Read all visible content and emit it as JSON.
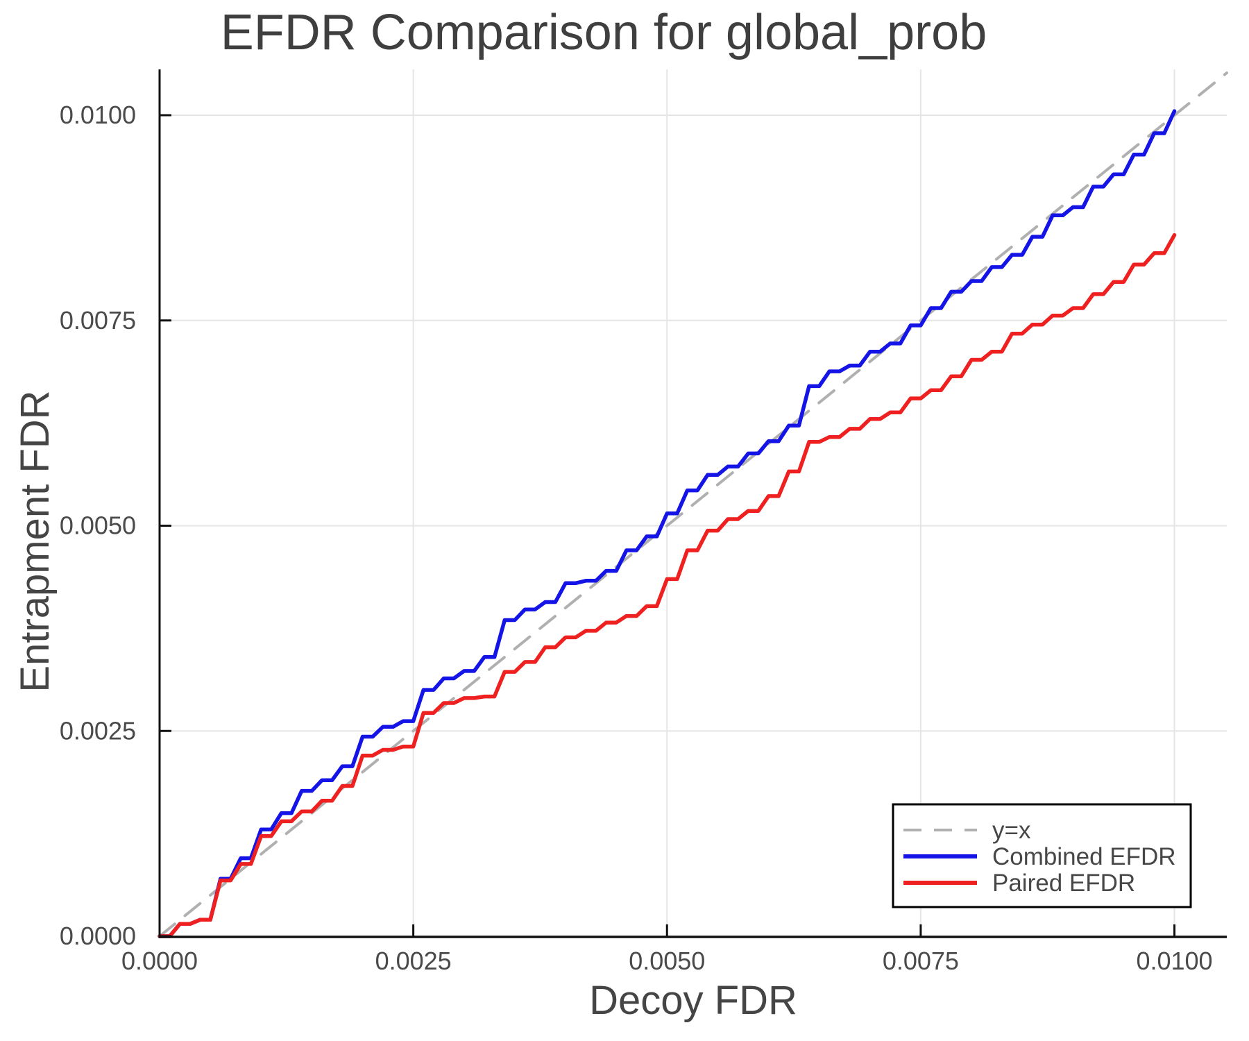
{
  "chart": {
    "title": "EFDR Comparison for global_prob",
    "xlabel": "Decoy FDR",
    "ylabel": "Entrapment FDR"
  },
  "style": {
    "background": "#ffffff",
    "axis_color": "#111111",
    "grid_color": "#e5e5e5",
    "tick_label_color": "#4a4a4a",
    "title_color": "#3f3f3f",
    "legend_border_color": "#000000",
    "legend_text_color": "#474747",
    "reference_color": "#b0b0b0",
    "combined_color": "#1414e6",
    "paired_color": "#ee2020"
  },
  "chart_data": {
    "type": "line",
    "title": "EFDR Comparison for global_prob",
    "xlabel": "Decoy FDR",
    "ylabel": "Entrapment FDR",
    "xlim": [
      0,
      0.010516
    ],
    "ylim": [
      0,
      0.010558
    ],
    "grid": true,
    "legend_position": "bottom-right",
    "x_ticks": {
      "values": [
        0.0,
        0.0025,
        0.005,
        0.0075,
        0.01
      ],
      "labels": [
        "0.0000",
        "0.0025",
        "0.0050",
        "0.0075",
        "0.0100"
      ]
    },
    "y_ticks": {
      "values": [
        0.0,
        0.0025,
        0.005,
        0.0075,
        0.01
      ],
      "labels": [
        "0.0000",
        "0.0025",
        "0.0050",
        "0.0075",
        "0.0100"
      ]
    },
    "series": [
      {
        "name": "y=x",
        "kind": "reference",
        "style": "dashed",
        "color": "#b0b0b0",
        "width": 4,
        "x": [
          0,
          0.010516
        ],
        "y": [
          0,
          0.010516
        ]
      },
      {
        "name": "Combined EFDR",
        "kind": "data",
        "style": "step",
        "color": "#1414e6",
        "width": 5.5,
        "x": [
          0.0,
          0.0002,
          0.0004,
          0.0006,
          0.0008,
          0.001,
          0.0012,
          0.0014,
          0.0016,
          0.0018,
          0.002,
          0.0022,
          0.0024,
          0.0026,
          0.0028,
          0.003,
          0.0032,
          0.0034,
          0.0036,
          0.0038,
          0.004,
          0.0042,
          0.0044,
          0.0046,
          0.0048,
          0.005,
          0.0052,
          0.0054,
          0.0056,
          0.0058,
          0.006,
          0.0062,
          0.0064,
          0.0066,
          0.0068,
          0.007,
          0.0072,
          0.0074,
          0.0076,
          0.0078,
          0.008,
          0.0082,
          0.0084,
          0.0086,
          0.0088,
          0.009,
          0.0092,
          0.0094,
          0.0096,
          0.0098,
          0.01
        ],
        "y": [
          0.0,
          0.00015,
          0.0002,
          0.0007,
          0.00095,
          0.0013,
          0.0015,
          0.00177,
          0.0019,
          0.00207,
          0.00243,
          0.00255,
          0.00262,
          0.003,
          0.00314,
          0.00323,
          0.0034,
          0.00385,
          0.00398,
          0.00407,
          0.0043,
          0.00433,
          0.00445,
          0.0047,
          0.00487,
          0.00515,
          0.00543,
          0.00562,
          0.00572,
          0.00588,
          0.00603,
          0.00622,
          0.0067,
          0.00688,
          0.00695,
          0.00712,
          0.00722,
          0.00744,
          0.00765,
          0.00785,
          0.00798,
          0.00815,
          0.0083,
          0.00852,
          0.00878,
          0.00888,
          0.00913,
          0.00928,
          0.00952,
          0.00978,
          0.01005
        ]
      },
      {
        "name": "Paired EFDR",
        "kind": "data",
        "style": "step",
        "color": "#ee2020",
        "width": 5.5,
        "x": [
          0.0,
          0.0002,
          0.0004,
          0.0006,
          0.0008,
          0.001,
          0.0012,
          0.0014,
          0.0016,
          0.0018,
          0.002,
          0.0022,
          0.0024,
          0.0026,
          0.0028,
          0.003,
          0.0032,
          0.0034,
          0.0036,
          0.0038,
          0.004,
          0.0042,
          0.0044,
          0.0046,
          0.0048,
          0.005,
          0.0052,
          0.0054,
          0.0056,
          0.0058,
          0.006,
          0.0062,
          0.0064,
          0.0066,
          0.0068,
          0.007,
          0.0072,
          0.0074,
          0.0076,
          0.0078,
          0.008,
          0.0082,
          0.0084,
          0.0086,
          0.0088,
          0.009,
          0.0092,
          0.0094,
          0.0096,
          0.0098,
          0.01
        ],
        "y": [
          0.0,
          0.00015,
          0.0002,
          0.00068,
          0.00088,
          0.00122,
          0.0014,
          0.00152,
          0.00165,
          0.00183,
          0.0022,
          0.00227,
          0.00231,
          0.00272,
          0.00284,
          0.0029,
          0.00292,
          0.00322,
          0.00334,
          0.00352,
          0.00364,
          0.00372,
          0.00382,
          0.0039,
          0.00402,
          0.00435,
          0.0047,
          0.00494,
          0.00508,
          0.00518,
          0.00536,
          0.00566,
          0.00602,
          0.00608,
          0.00618,
          0.0063,
          0.00638,
          0.00655,
          0.00665,
          0.00682,
          0.00702,
          0.00712,
          0.00734,
          0.00745,
          0.00756,
          0.00765,
          0.00782,
          0.00797,
          0.00818,
          0.00832,
          0.00854
        ]
      }
    ],
    "legend": {
      "entries": [
        "y=x",
        "Combined EFDR",
        "Paired EFDR"
      ]
    }
  }
}
